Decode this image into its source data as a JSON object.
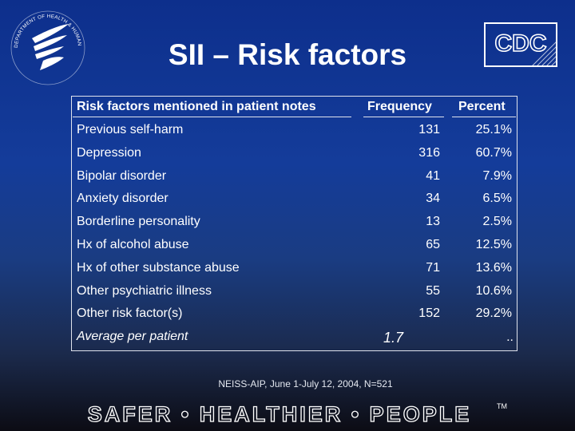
{
  "slide": {
    "title": "SII – Risk factors",
    "source_note": "NEISS-AIP, June 1-July 12, 2004, N=521",
    "tagline": "SAFER • HEALTHIER • PEOPLE",
    "tagline_mark": "TM"
  },
  "logos": {
    "cdc": "CDC"
  },
  "table": {
    "headers": {
      "factor": "Risk factors mentioned in patient notes",
      "frequency": "Frequency",
      "percent": "Percent"
    },
    "rows": [
      {
        "label": "Previous self-harm",
        "frequency": "131",
        "percent": "25.1%"
      },
      {
        "label": "Depression",
        "frequency": "316",
        "percent": "60.7%"
      },
      {
        "label": "Bipolar disorder",
        "frequency": "41",
        "percent": "7.9%"
      },
      {
        "label": "Anxiety disorder",
        "frequency": "34",
        "percent": "6.5%"
      },
      {
        "label": "Borderline personality",
        "frequency": "13",
        "percent": "2.5%"
      },
      {
        "label": "Hx of alcohol abuse",
        "frequency": "65",
        "percent": "12.5%"
      },
      {
        "label": "Hx of other substance abuse",
        "frequency": "71",
        "percent": "13.6%"
      },
      {
        "label": "Other psychiatric illness",
        "frequency": "55",
        "percent": "10.6%"
      },
      {
        "label": "Other risk factor(s)",
        "frequency": "152",
        "percent": "29.2%"
      }
    ],
    "average": {
      "label": "Average per patient",
      "frequency": "1.7",
      "percent": ".."
    }
  }
}
